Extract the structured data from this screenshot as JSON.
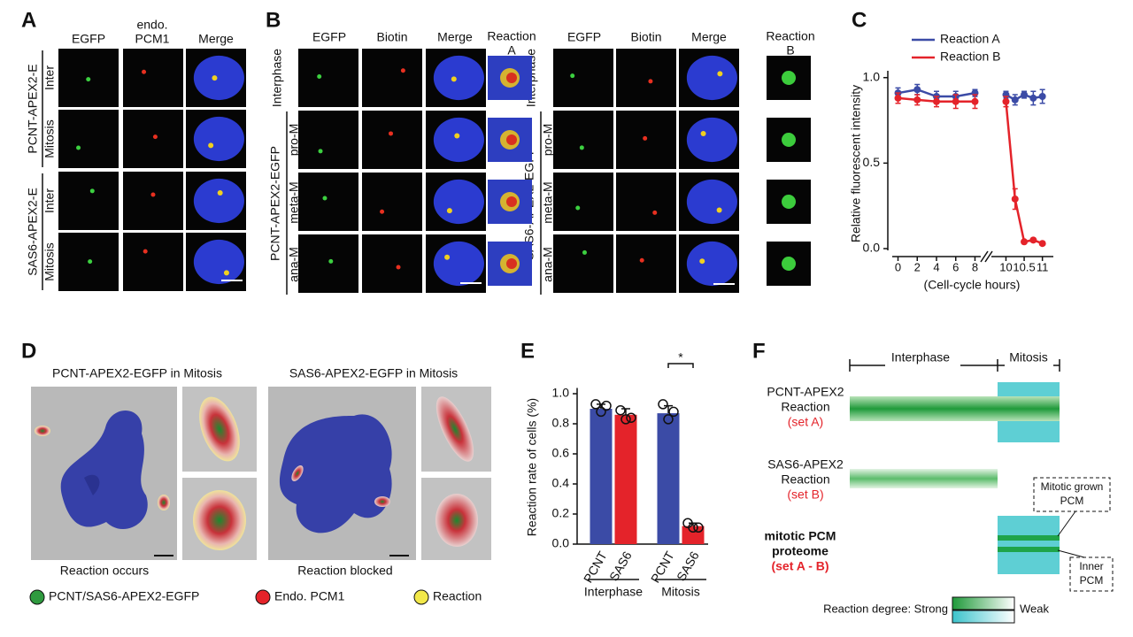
{
  "panel_labels": [
    "A",
    "B",
    "C",
    "D",
    "E",
    "F"
  ],
  "panel_a": {
    "columns": [
      "EGFP",
      "endo.",
      "PCM1",
      "Merge"
    ],
    "constructs": [
      "PCNT-APEX2-E",
      "SAS6-APEX2-E"
    ],
    "rows": [
      "Inter",
      "Mitosis",
      "Inter",
      "Mitosis"
    ]
  },
  "panel_b": {
    "columns": [
      "EGFP",
      "Biotin",
      "Merge"
    ],
    "reaction_a": [
      "Reaction",
      "A"
    ],
    "reaction_b": [
      "Reaction",
      "B"
    ],
    "constructs": [
      "PCNT-APEX2-EGFP",
      "SAS6-APEX2-EGFP"
    ],
    "rows": [
      "Interphase",
      "pro-M",
      "meta-M",
      "ana-M"
    ]
  },
  "panel_d": {
    "titles": [
      "PCNT-APEX2-EGFP in Mitosis",
      "SAS6-APEX2-EGFP in Mitosis"
    ],
    "captions": [
      "Reaction occurs",
      "Reaction blocked"
    ],
    "legend": [
      "PCNT/SAS6-APEX2-EGFP",
      "Endo. PCM1",
      "Reaction"
    ]
  },
  "panel_f": {
    "phases": [
      "Interphase",
      "Mitosis"
    ],
    "rows": [
      {
        "lines": [
          "PCNT-APEX2",
          "Reaction"
        ],
        "set": "(set A)"
      },
      {
        "lines": [
          "SAS6-APEX2",
          "Reaction"
        ],
        "set": "(set B)"
      },
      {
        "lines": [
          "mitotic PCM",
          "proteome"
        ],
        "set": "(set A - B)"
      }
    ],
    "callouts": [
      [
        "Mitotic grown",
        "PCM"
      ],
      [
        "Inner",
        "PCM"
      ]
    ],
    "legend": {
      "label": "Reaction degree: Strong",
      "weak": "Weak"
    }
  },
  "chart_data": [
    {
      "type": "line",
      "ylabel": "Relative fluorescent intensity",
      "xlabel": "(Cell-cycle hours)",
      "x": [
        0,
        2,
        4,
        6,
        8,
        10,
        10.25,
        10.5,
        10.75,
        11
      ],
      "xlim": [
        -0.6,
        11.3
      ],
      "x_break": [
        8.6,
        9.6
      ],
      "xticks": [
        0,
        2,
        4,
        6,
        8,
        10,
        10.5,
        11
      ],
      "ylim": [
        0,
        1.04
      ],
      "yticks": [
        {
          "value": 0,
          "label": "0.0"
        },
        0.5,
        {
          "value": 1,
          "label": "1.0"
        }
      ],
      "legend": "top",
      "series": [
        {
          "name": "Reaction A",
          "color": "#3b4ba6",
          "values": [
            0.91,
            0.93,
            0.89,
            0.89,
            0.91,
            0.9,
            0.87,
            0.9,
            0.88,
            0.89
          ],
          "errors": [
            0.03,
            0.03,
            0.03,
            0.03,
            0.02,
            0.02,
            0.03,
            0.02,
            0.04,
            0.04
          ]
        },
        {
          "name": "Reaction B",
          "color": "#e4232a",
          "values": [
            0.88,
            0.87,
            0.86,
            0.86,
            0.86,
            0.86,
            0.29,
            0.04,
            0.05,
            0.03
          ],
          "errors": [
            0.03,
            0.03,
            0.03,
            0.04,
            0.04,
            0.03,
            0.06,
            0.01,
            0.01,
            0.01
          ]
        }
      ]
    },
    {
      "type": "bar",
      "ylabel": "Reaction rate of cells (%)",
      "categories": [
        "PCNT",
        "SAS6",
        "PCNT",
        "SAS6"
      ],
      "groups": [
        "Interphase",
        "Mitosis"
      ],
      "values": [
        0.9,
        0.86,
        0.87,
        0.12
      ],
      "errors": [
        0.03,
        0.04,
        0.05,
        0.02
      ],
      "points": [
        [
          0.93,
          0.88,
          0.92
        ],
        [
          0.89,
          0.83,
          0.84
        ],
        [
          0.93,
          0.83,
          0.88
        ],
        [
          0.14,
          0.11,
          0.11
        ]
      ],
      "colors": [
        "#3b4ba6",
        "#e4232a",
        "#3b4ba6",
        "#e4232a"
      ],
      "annotation": "*",
      "ylim": [
        0,
        1.05
      ],
      "yticks": [
        {
          "value": 0,
          "label": "0.0"
        },
        0.2,
        0.4,
        0.6,
        0.8,
        {
          "value": 1,
          "label": "1.0"
        }
      ]
    }
  ]
}
